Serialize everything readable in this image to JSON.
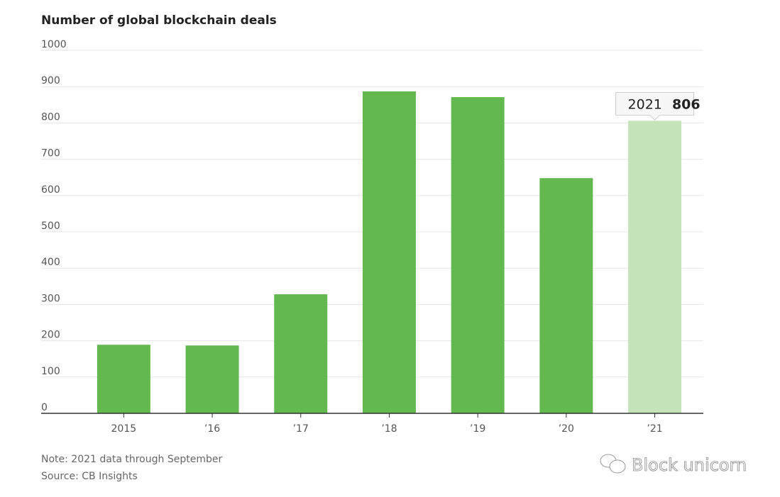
{
  "chart_data": {
    "type": "bar",
    "title": "Number of global blockchain deals",
    "categories": [
      "2015",
      "’16",
      "’17",
      "’18",
      "’19",
      "’20",
      "’21"
    ],
    "values": [
      189,
      187,
      328,
      887,
      871,
      648,
      806
    ],
    "ylim": [
      0,
      1000
    ],
    "yticks": [
      "0",
      "100",
      "200",
      "300",
      "400",
      "500",
      "600",
      "700",
      "800",
      "900",
      "1000"
    ],
    "xlabel": "",
    "ylabel": "",
    "grid": true,
    "colors": {
      "bar": "#63b950",
      "highlight": "#c5e3b8"
    },
    "highlight_index": 6,
    "tooltip": {
      "label": "2021",
      "value": "806"
    },
    "note": "Note: 2021 data through September",
    "source": "Source: CB Insights"
  },
  "watermark": "Block unicorn"
}
